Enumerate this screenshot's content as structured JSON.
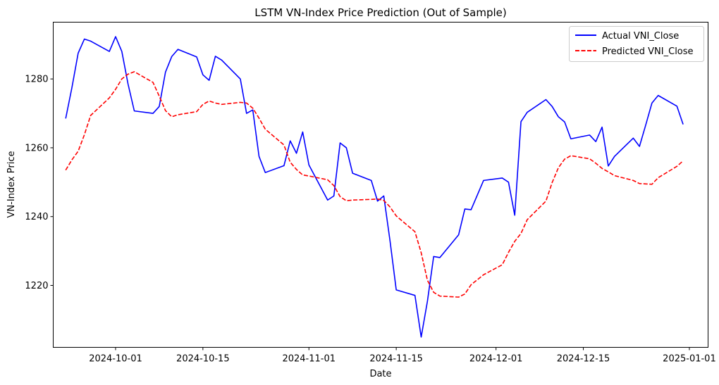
{
  "chart_data": {
    "type": "line",
    "title": "LSTM VN-Index Price Prediction (Out of Sample)",
    "xlabel": "Date",
    "ylabel": "VN-Index Price",
    "xlim": [
      "2024-09-21",
      "2025-01-04"
    ],
    "ylim": [
      1202,
      1296.5
    ],
    "x_ticks": [
      "2024-10-01",
      "2024-10-15",
      "2024-11-01",
      "2024-11-15",
      "2024-12-01",
      "2024-12-15",
      "2025-01-01"
    ],
    "y_ticks": [
      1220,
      1240,
      1260,
      1280
    ],
    "legend_position": "top-right",
    "grid": false,
    "series": [
      {
        "name": "Actual VNI_Close",
        "color": "#0000ff",
        "style": "solid",
        "points": [
          [
            "2024-09-23",
            1268.5
          ],
          [
            "2024-09-24",
            1277.5
          ],
          [
            "2024-09-25",
            1287.5
          ],
          [
            "2024-09-26",
            1291.6
          ],
          [
            "2024-09-27",
            1291.0
          ],
          [
            "2024-09-30",
            1288.0
          ],
          [
            "2024-10-01",
            1292.3
          ],
          [
            "2024-10-02",
            1288.0
          ],
          [
            "2024-10-03",
            1278.5
          ],
          [
            "2024-10-04",
            1270.7
          ],
          [
            "2024-10-07",
            1270.0
          ],
          [
            "2024-10-08",
            1272.0
          ],
          [
            "2024-10-09",
            1282.0
          ],
          [
            "2024-10-10",
            1286.5
          ],
          [
            "2024-10-11",
            1288.6
          ],
          [
            "2024-10-14",
            1286.4
          ],
          [
            "2024-10-15",
            1281.2
          ],
          [
            "2024-10-16",
            1279.6
          ],
          [
            "2024-10-17",
            1286.6
          ],
          [
            "2024-10-18",
            1285.5
          ],
          [
            "2024-10-21",
            1280.0
          ],
          [
            "2024-10-22",
            1270.0
          ],
          [
            "2024-10-23",
            1271.0
          ],
          [
            "2024-10-24",
            1257.5
          ],
          [
            "2024-10-25",
            1252.8
          ],
          [
            "2024-10-28",
            1254.8
          ],
          [
            "2024-10-29",
            1262.0
          ],
          [
            "2024-10-30",
            1258.4
          ],
          [
            "2024-10-31",
            1264.6
          ],
          [
            "2024-11-01",
            1255.0
          ],
          [
            "2024-11-04",
            1244.8
          ],
          [
            "2024-11-05",
            1246.0
          ],
          [
            "2024-11-06",
            1261.4
          ],
          [
            "2024-11-07",
            1260.0
          ],
          [
            "2024-11-08",
            1252.6
          ],
          [
            "2024-11-11",
            1250.5
          ],
          [
            "2024-11-12",
            1244.5
          ],
          [
            "2024-11-13",
            1246.0
          ],
          [
            "2024-11-14",
            1233.0
          ],
          [
            "2024-11-15",
            1218.7
          ],
          [
            "2024-11-18",
            1217.1
          ],
          [
            "2024-11-19",
            1205.0
          ],
          [
            "2024-11-20",
            1215.4
          ],
          [
            "2024-11-21",
            1228.4
          ],
          [
            "2024-11-22",
            1228.1
          ],
          [
            "2024-11-25",
            1234.7
          ],
          [
            "2024-11-26",
            1242.2
          ],
          [
            "2024-11-27",
            1242.0
          ],
          [
            "2024-11-29",
            1250.5
          ],
          [
            "2024-12-02",
            1251.2
          ],
          [
            "2024-12-03",
            1250.0
          ],
          [
            "2024-12-04",
            1240.4
          ],
          [
            "2024-12-05",
            1267.6
          ],
          [
            "2024-12-06",
            1270.3
          ],
          [
            "2024-12-09",
            1274.0
          ],
          [
            "2024-12-10",
            1272.0
          ],
          [
            "2024-12-11",
            1269.0
          ],
          [
            "2024-12-12",
            1267.5
          ],
          [
            "2024-12-13",
            1262.6
          ],
          [
            "2024-12-16",
            1263.7
          ],
          [
            "2024-12-17",
            1261.8
          ],
          [
            "2024-12-18",
            1266.0
          ],
          [
            "2024-12-19",
            1254.7
          ],
          [
            "2024-12-20",
            1257.5
          ],
          [
            "2024-12-23",
            1262.8
          ],
          [
            "2024-12-24",
            1260.4
          ],
          [
            "2024-12-25",
            1266.6
          ],
          [
            "2024-12-26",
            1273.0
          ],
          [
            "2024-12-27",
            1275.2
          ],
          [
            "2024-12-30",
            1272.1
          ],
          [
            "2024-12-31",
            1266.8
          ]
        ]
      },
      {
        "name": "Predicted VNI_Close",
        "color": "#ff0000",
        "style": "dashed",
        "points": [
          [
            "2024-09-23",
            1253.5
          ],
          [
            "2024-09-24",
            1256.5
          ],
          [
            "2024-09-25",
            1259.0
          ],
          [
            "2024-09-26",
            1263.8
          ],
          [
            "2024-09-27",
            1269.4
          ],
          [
            "2024-09-30",
            1274.5
          ],
          [
            "2024-10-01",
            1277.0
          ],
          [
            "2024-10-02",
            1280.0
          ],
          [
            "2024-10-03",
            1281.4
          ],
          [
            "2024-10-04",
            1282.1
          ],
          [
            "2024-10-07",
            1279.0
          ],
          [
            "2024-10-08",
            1275.0
          ],
          [
            "2024-10-09",
            1270.8
          ],
          [
            "2024-10-10",
            1269.0
          ],
          [
            "2024-10-11",
            1269.6
          ],
          [
            "2024-10-14",
            1270.5
          ],
          [
            "2024-10-15",
            1272.6
          ],
          [
            "2024-10-16",
            1273.6
          ],
          [
            "2024-10-17",
            1273.0
          ],
          [
            "2024-10-18",
            1272.6
          ],
          [
            "2024-10-21",
            1273.2
          ],
          [
            "2024-10-22",
            1273.0
          ],
          [
            "2024-10-23",
            1271.5
          ],
          [
            "2024-10-24",
            1268.6
          ],
          [
            "2024-10-25",
            1265.4
          ],
          [
            "2024-10-28",
            1260.8
          ],
          [
            "2024-10-29",
            1255.8
          ],
          [
            "2024-10-30",
            1253.7
          ],
          [
            "2024-10-31",
            1252.1
          ],
          [
            "2024-11-01",
            1251.8
          ],
          [
            "2024-11-04",
            1250.7
          ],
          [
            "2024-11-05",
            1249.0
          ],
          [
            "2024-11-06",
            1245.8
          ],
          [
            "2024-11-07",
            1244.6
          ],
          [
            "2024-11-08",
            1244.8
          ],
          [
            "2024-11-11",
            1245.0
          ],
          [
            "2024-11-12",
            1245.1
          ],
          [
            "2024-11-13",
            1244.7
          ],
          [
            "2024-11-14",
            1242.8
          ],
          [
            "2024-11-15",
            1240.2
          ],
          [
            "2024-11-18",
            1235.6
          ],
          [
            "2024-11-19",
            1229.5
          ],
          [
            "2024-11-20",
            1221.5
          ],
          [
            "2024-11-21",
            1218.0
          ],
          [
            "2024-11-22",
            1216.9
          ],
          [
            "2024-11-25",
            1216.6
          ],
          [
            "2024-11-26",
            1217.5
          ],
          [
            "2024-11-27",
            1220.2
          ],
          [
            "2024-11-29",
            1223.1
          ],
          [
            "2024-12-02",
            1226.0
          ],
          [
            "2024-12-03",
            1229.6
          ],
          [
            "2024-12-04",
            1232.8
          ],
          [
            "2024-12-05",
            1235.1
          ],
          [
            "2024-12-06",
            1239.1
          ],
          [
            "2024-12-09",
            1244.5
          ],
          [
            "2024-12-10",
            1249.9
          ],
          [
            "2024-12-11",
            1254.2
          ],
          [
            "2024-12-12",
            1256.7
          ],
          [
            "2024-12-13",
            1257.7
          ],
          [
            "2024-12-16",
            1256.8
          ],
          [
            "2024-12-17",
            1255.5
          ],
          [
            "2024-12-18",
            1254.0
          ],
          [
            "2024-12-19",
            1253.0
          ],
          [
            "2024-12-20",
            1251.9
          ],
          [
            "2024-12-23",
            1250.5
          ],
          [
            "2024-12-24",
            1249.6
          ],
          [
            "2024-12-25",
            1249.5
          ],
          [
            "2024-12-26",
            1249.4
          ],
          [
            "2024-12-27",
            1251.3
          ],
          [
            "2024-12-30",
            1254.6
          ],
          [
            "2024-12-31",
            1256.2
          ]
        ]
      }
    ]
  }
}
